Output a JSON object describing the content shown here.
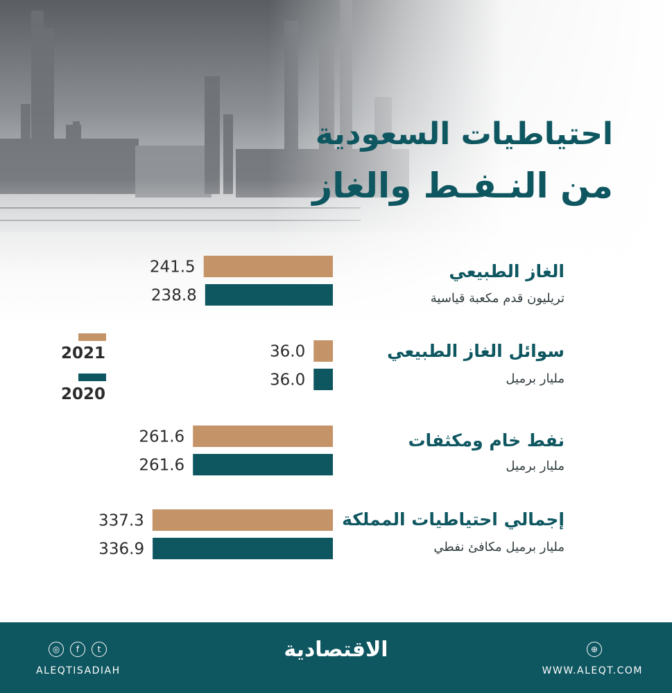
{
  "title_line1": "احتياطيات السعودية",
  "title_line2": "من النـفـط والغاز",
  "colors": {
    "y2021": "#c49468",
    "y2020": "#0e5660",
    "brand": "#0e5660"
  },
  "legend": [
    {
      "label": "2021",
      "color": "#c49468"
    },
    {
      "label": "2020",
      "color": "#0e5660"
    }
  ],
  "chart_data": {
    "type": "bar",
    "orientation": "horizontal",
    "series": [
      {
        "name": "2021",
        "values": [
          241.5,
          36.0,
          261.6,
          337.3
        ]
      },
      {
        "name": "2020",
        "values": [
          238.8,
          36.0,
          261.6,
          336.9
        ]
      }
    ],
    "value_labels": [
      [
        "241.5",
        "238.8"
      ],
      [
        "36.0",
        "36.0"
      ],
      [
        "261.6",
        "261.6"
      ],
      [
        "337.3",
        "336.9"
      ]
    ],
    "categories": [
      {
        "title": "الغاز الطبيعي",
        "unit": "تريليون قدم مكعبة قياسية"
      },
      {
        "title": "سوائل الغاز الطبيعي",
        "unit": "مليار برميل"
      },
      {
        "title": "نفط خام ومكثفات",
        "unit": "مليار برميل"
      },
      {
        "title": "إجمالي احتياطيات المملكة",
        "unit": "مليار برميل مكافئ نفطي"
      }
    ],
    "legend_position": "left"
  },
  "footer": {
    "logo": "الاقتصادية",
    "handle": "ALEQTISADIAH",
    "website": "WWW.ALEQT.COM",
    "social_icons": [
      "instagram-icon",
      "facebook-icon",
      "twitter-icon"
    ],
    "site_icon": "dribbble-icon"
  }
}
